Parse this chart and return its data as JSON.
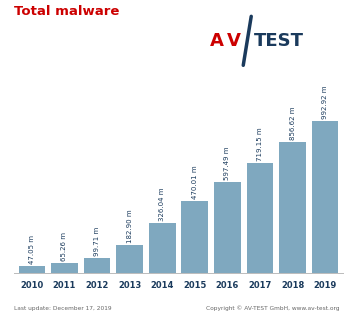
{
  "title": "Total malware",
  "title_color": "#cc0000",
  "years": [
    "2010",
    "2011",
    "2012",
    "2013",
    "2014",
    "2015",
    "2016",
    "2017",
    "2018",
    "2019"
  ],
  "values": [
    47.05,
    65.26,
    99.71,
    182.9,
    326.04,
    470.01,
    597.49,
    719.15,
    856.62,
    992.92
  ],
  "labels": [
    "47.05 m",
    "65.26 m",
    "99.71 m",
    "182.90 m",
    "326.04 m",
    "470.01 m",
    "597.49 m",
    "719.15 m",
    "856.62 m",
    "992.92 m"
  ],
  "bar_color": "#7fa8bf",
  "background_color": "#ffffff",
  "footer_left": "Last update: December 17, 2019",
  "footer_right": "Copyright © AV-TEST GmbH, www.av-test.org",
  "dark_blue": "#1a3a5c",
  "red_color": "#cc0000",
  "ylim_max": 1150,
  "label_fontsize": 5.0,
  "footer_fontsize": 4.2,
  "title_fontsize": 9.5,
  "tick_fontsize": 6.0,
  "bar_gap": 0.18
}
